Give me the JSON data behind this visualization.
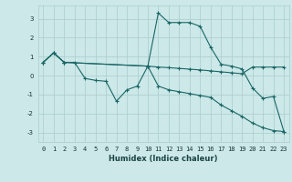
{
  "xlabel": "Humidex (Indice chaleur)",
  "bg_color": "#cce8e8",
  "grid_color": "#aacccc",
  "line_color": "#1a6666",
  "xlim": [
    -0.5,
    23.5
  ],
  "ylim": [
    -3.5,
    3.7
  ],
  "yticks": [
    -3,
    -2,
    -1,
    0,
    1,
    2,
    3
  ],
  "xticks": [
    0,
    1,
    2,
    3,
    4,
    5,
    6,
    7,
    8,
    9,
    10,
    11,
    12,
    13,
    14,
    15,
    16,
    17,
    18,
    19,
    20,
    21,
    22,
    23
  ],
  "line1_x": [
    0,
    1,
    2,
    3,
    4,
    5,
    6,
    7,
    8,
    9,
    10,
    11,
    12,
    13,
    14,
    15,
    16,
    17,
    18,
    19,
    20,
    21,
    22,
    23
  ],
  "line1_y": [
    0.7,
    1.2,
    0.7,
    0.7,
    -0.15,
    -0.25,
    -0.3,
    -1.35,
    -0.75,
    -0.55,
    0.5,
    3.3,
    2.8,
    2.8,
    2.8,
    2.6,
    1.5,
    0.6,
    0.5,
    0.35,
    -0.65,
    -1.2,
    -1.1,
    -2.95
  ],
  "line2_x": [
    0,
    1,
    2,
    10,
    11,
    12,
    13,
    14,
    15,
    16,
    17,
    18,
    19,
    20,
    21,
    22,
    23
  ],
  "line2_y": [
    0.7,
    1.2,
    0.7,
    0.5,
    0.45,
    0.42,
    0.38,
    0.34,
    0.3,
    0.25,
    0.2,
    0.15,
    0.1,
    0.45,
    0.45,
    0.45,
    0.45
  ],
  "line3_x": [
    0,
    1,
    2,
    10,
    11,
    12,
    13,
    14,
    15,
    16,
    17,
    18,
    19,
    20,
    21,
    22,
    23
  ],
  "line3_y": [
    0.7,
    1.2,
    0.7,
    0.5,
    -0.55,
    -0.75,
    -0.85,
    -0.95,
    -1.05,
    -1.15,
    -1.55,
    -1.85,
    -2.15,
    -2.5,
    -2.75,
    -2.9,
    -2.95
  ]
}
